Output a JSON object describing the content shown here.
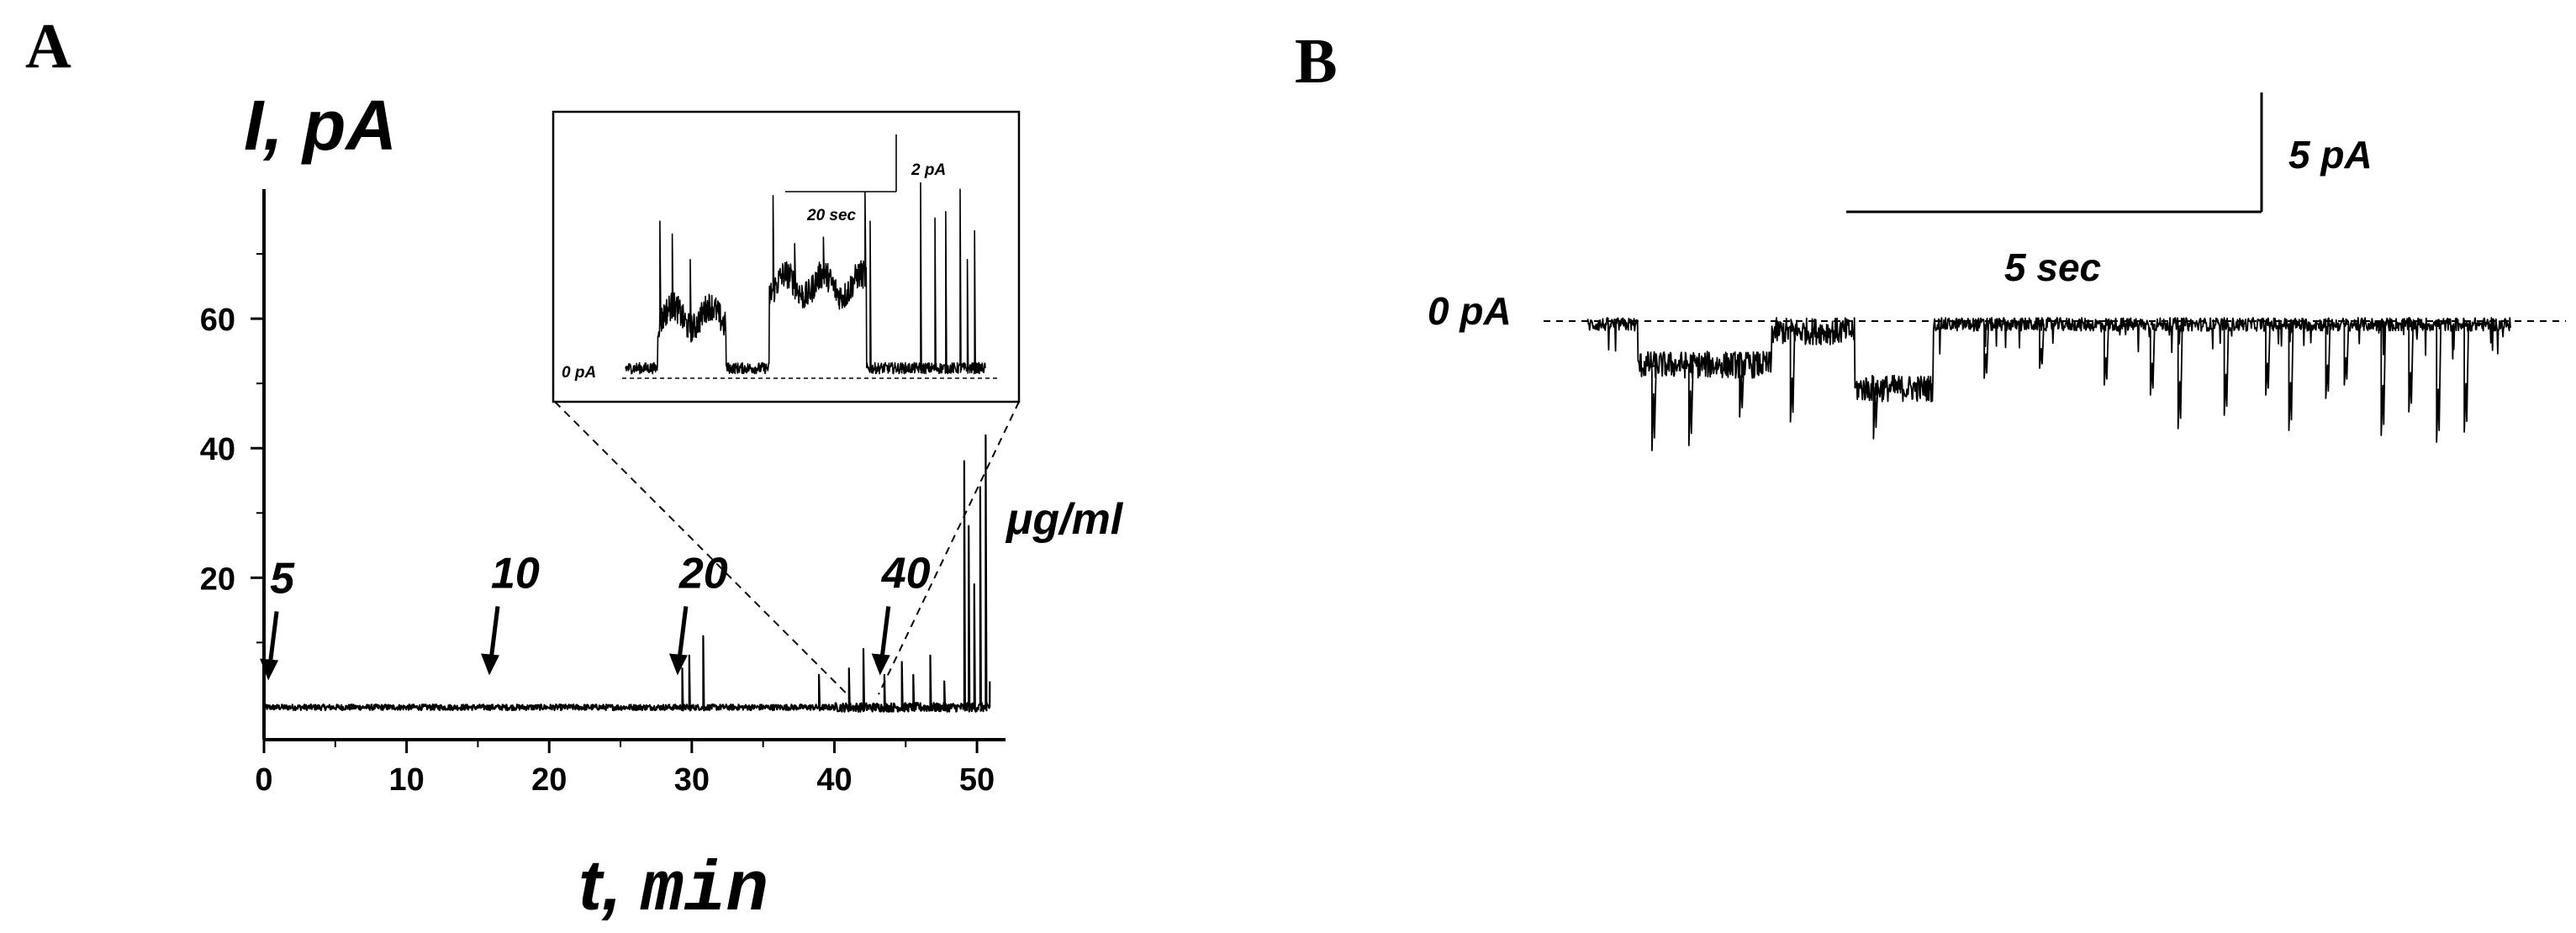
{
  "chart_data": [
    {
      "panel": "A",
      "type": "line",
      "ylabel": "I, pA",
      "xlabel_text": "t, ",
      "xlabel_unit": "min",
      "xlim": [
        0,
        52
      ],
      "ylim": [
        -5,
        80
      ],
      "x_ticks": [
        0,
        10,
        20,
        30,
        40,
        50
      ],
      "y_ticks": [
        20,
        40,
        60
      ],
      "concentration_unit": "μg/ml",
      "additions": [
        {
          "label": "5",
          "t": 0.3
        },
        {
          "label": "10",
          "t": 15.8
        },
        {
          "label": "20",
          "t": 29.0
        },
        {
          "label": "40",
          "t": 43.2
        }
      ],
      "trace": {
        "baseline": 0,
        "spikes": [
          {
            "t": 29.3,
            "y": 6
          },
          {
            "t": 29.8,
            "y": 8
          },
          {
            "t": 30.8,
            "y": 11
          },
          {
            "t": 38.9,
            "y": 5
          },
          {
            "t": 41.0,
            "y": 6
          },
          {
            "t": 42.0,
            "y": 9
          },
          {
            "t": 43.5,
            "y": 5
          },
          {
            "t": 44.7,
            "y": 7
          },
          {
            "t": 45.5,
            "y": 5
          },
          {
            "t": 46.7,
            "y": 8
          },
          {
            "t": 47.7,
            "y": 4
          },
          {
            "t": 49.1,
            "y": 38
          },
          {
            "t": 49.4,
            "y": 28
          },
          {
            "t": 49.8,
            "y": 19
          },
          {
            "t": 50.2,
            "y": 34
          },
          {
            "t": 50.6,
            "y": 42
          }
        ],
        "end_t": 50.9
      },
      "inset": {
        "baseline_label": "0 pA",
        "scale_current_label": "2 pA",
        "scale_time_label": "20 sec",
        "zoom_t": [
          40.9,
          43.1
        ],
        "levels": [
          {
            "from": 0.0,
            "to": 0.09,
            "level": 0
          },
          {
            "from": 0.09,
            "to": 0.28,
            "level": 1.6
          },
          {
            "from": 0.28,
            "to": 0.4,
            "level": 0
          },
          {
            "from": 0.4,
            "to": 0.67,
            "level": 2.6
          },
          {
            "from": 0.67,
            "to": 1.0,
            "level": 0
          }
        ],
        "ylim": [
          -0.6,
          6.2
        ]
      }
    },
    {
      "panel": "B",
      "type": "line",
      "baseline_label": "0 pA",
      "scale_current_label": "5 pA",
      "scale_time_label": "5 sec",
      "trace": {
        "baseline": 0,
        "level_segments": [
          {
            "from": 0.0,
            "to": 0.055,
            "level": 0
          },
          {
            "from": 0.055,
            "to": 0.2,
            "level": -2.4
          },
          {
            "from": 0.2,
            "to": 0.29,
            "level": -0.4
          },
          {
            "from": 0.29,
            "to": 0.375,
            "level": -3.8
          },
          {
            "from": 0.375,
            "to": 1.0,
            "level": 0
          }
        ],
        "dips": [
          {
            "p": 0.07,
            "depth": -7.5
          },
          {
            "p": 0.11,
            "depth": -7.2
          },
          {
            "p": 0.165,
            "depth": -5.5
          },
          {
            "p": 0.22,
            "depth": -5.8
          },
          {
            "p": 0.31,
            "depth": -6.8
          },
          {
            "p": 0.43,
            "depth": -3.2
          },
          {
            "p": 0.49,
            "depth": -2.6
          },
          {
            "p": 0.56,
            "depth": -3.6
          },
          {
            "p": 0.61,
            "depth": -4.2
          },
          {
            "p": 0.64,
            "depth": -6.2
          },
          {
            "p": 0.69,
            "depth": -5.4
          },
          {
            "p": 0.735,
            "depth": -4.2
          },
          {
            "p": 0.76,
            "depth": -6.3
          },
          {
            "p": 0.8,
            "depth": -4.4
          },
          {
            "p": 0.82,
            "depth": -3.6
          },
          {
            "p": 0.86,
            "depth": -6.6
          },
          {
            "p": 0.89,
            "depth": -5.2
          },
          {
            "p": 0.92,
            "depth": -7.0
          },
          {
            "p": 0.95,
            "depth": -6.4
          }
        ],
        "ylim": [
          -8.5,
          1.5
        ]
      }
    }
  ]
}
